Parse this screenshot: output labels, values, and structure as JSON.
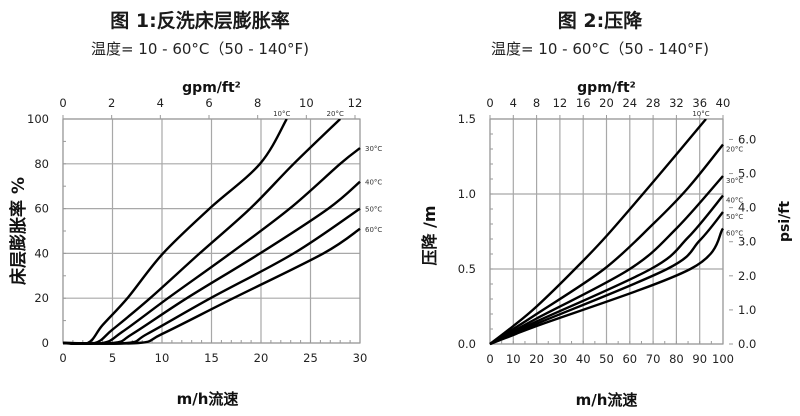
{
  "chart_data": [
    {
      "type": "line",
      "title": "图 1:反洗床层膨胀率",
      "subtitle": "温度= 10 - 60°C（50 - 140°F)",
      "xlabel": "m/h流速",
      "ylabel": "床层膨胀率 %",
      "x2label": "gpm/ft²",
      "xlim": [
        0,
        30
      ],
      "ylim": [
        0,
        100
      ],
      "x2lim": [
        0,
        12.2
      ],
      "xticks": [
        "0",
        "5",
        "10",
        "15",
        "20",
        "25",
        "30"
      ],
      "yticks": [
        "0",
        "20",
        "40",
        "60",
        "80",
        "100"
      ],
      "x2ticks": [
        "0",
        "2",
        "4",
        "6",
        "8",
        "10",
        "12"
      ],
      "grid": true,
      "series": [
        {
          "name": "10°C",
          "x": [
            0,
            2.5,
            4,
            6.5,
            10.1,
            14.8,
            19.9,
            22.6
          ],
          "y": [
            0,
            0,
            8,
            20,
            40,
            60,
            80,
            100
          ]
        },
        {
          "name": "20°C",
          "x": [
            0,
            3.2,
            5,
            8.8,
            13.8,
            18.9,
            23.3,
            28.0
          ],
          "y": [
            0,
            0,
            6,
            20,
            40,
            60,
            80,
            100
          ]
        },
        {
          "name": "30°C",
          "x": [
            0,
            4.0,
            6,
            10.6,
            16.9,
            22.9,
            28.0,
            30.0
          ],
          "y": [
            0,
            0,
            5,
            20,
            40,
            60,
            80,
            87
          ]
        },
        {
          "name": "40°C",
          "x": [
            0,
            5.1,
            7,
            12.5,
            19.9,
            26.8,
            30.0
          ],
          "y": [
            0,
            0,
            4,
            20,
            40,
            60,
            72
          ]
        },
        {
          "name": "50°C",
          "x": [
            0,
            6.5,
            8.5,
            14.9,
            23.3,
            30.0
          ],
          "y": [
            0,
            0,
            4,
            20,
            40,
            60
          ]
        },
        {
          "name": "60°C",
          "x": [
            0,
            7.6,
            10,
            17.2,
            26.3,
            30.0
          ],
          "y": [
            0,
            0,
            4,
            20,
            40,
            51
          ]
        }
      ]
    },
    {
      "type": "line",
      "title": "图 2:压降",
      "subtitle": "温度= 10 - 60°C（50 - 140°F)",
      "xlabel": "m/h流速",
      "ylabel": "压降 /m",
      "y2label": "psi/ft",
      "x2label": "gpm/ft²",
      "xlim": [
        0,
        100
      ],
      "ylim": [
        0,
        1.5
      ],
      "y2lim": [
        0,
        6.6
      ],
      "x2lim": [
        0,
        40
      ],
      "xticks": [
        "0",
        "10",
        "20",
        "30",
        "40",
        "50",
        "60",
        "70",
        "80",
        "90",
        "100"
      ],
      "yticks": [
        "0.0",
        "0.5",
        "1.0",
        "1.5"
      ],
      "y2ticks": [
        "0.0",
        "1.0",
        "2.0",
        "3.0",
        "4.0",
        "5.0",
        "6.0"
      ],
      "x2ticks": [
        "0",
        "4",
        "8",
        "12",
        "16",
        "20",
        "24",
        "28",
        "32",
        "36",
        "40"
      ],
      "grid": true,
      "series": [
        {
          "name": "10°C",
          "x": [
            0,
            10,
            20,
            36.5,
            50,
            70,
            92.7
          ],
          "y": [
            0,
            0.12,
            0.25,
            0.5,
            0.72,
            1.08,
            1.5
          ]
        },
        {
          "name": "20°C",
          "x": [
            0,
            10,
            20,
            49,
            70,
            85,
            100
          ],
          "y": [
            0,
            0.1,
            0.2,
            0.5,
            0.8,
            1.04,
            1.33
          ]
        },
        {
          "name": "30°C",
          "x": [
            0,
            10,
            20,
            60,
            80,
            100
          ],
          "y": [
            0,
            0.085,
            0.17,
            0.5,
            0.77,
            1.12
          ]
        },
        {
          "name": "40°C",
          "x": [
            0,
            10,
            20,
            69,
            85,
            100
          ],
          "y": [
            0,
            0.075,
            0.15,
            0.5,
            0.71,
            0.99
          ]
        },
        {
          "name": "50°C",
          "x": [
            0,
            10,
            20,
            76,
            90,
            100
          ],
          "y": [
            0,
            0.068,
            0.135,
            0.5,
            0.69,
            0.88
          ]
        },
        {
          "name": "60°C",
          "x": [
            0,
            10,
            20,
            86,
            100
          ],
          "y": [
            0,
            0.06,
            0.12,
            0.5,
            0.77
          ]
        }
      ]
    }
  ]
}
